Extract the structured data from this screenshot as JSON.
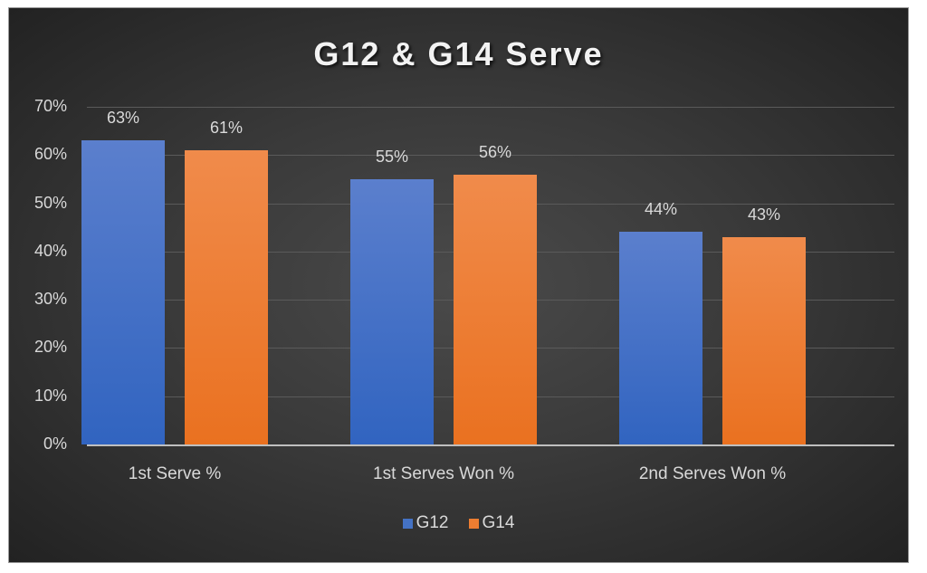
{
  "chart_data": {
    "type": "bar",
    "title": "G12 & G14 Serve",
    "categories": [
      "1st Serve %",
      "1st Serves Won %",
      "2nd Serves Won %"
    ],
    "series": [
      {
        "name": "G12",
        "color": "#4472C4",
        "values": [
          63,
          55,
          44
        ],
        "labels": [
          "63%",
          "55%",
          "44%"
        ]
      },
      {
        "name": "G14",
        "color": "#ED7D31",
        "values": [
          61,
          56,
          43
        ],
        "labels": [
          "61%",
          "56%",
          "43%"
        ]
      }
    ],
    "xlabel": "",
    "ylabel": "",
    "ylim": [
      0,
      70
    ],
    "yticks": [
      "0%",
      "10%",
      "20%",
      "30%",
      "40%",
      "50%",
      "60%",
      "70%"
    ],
    "grid": true,
    "legend_position": "bottom"
  }
}
